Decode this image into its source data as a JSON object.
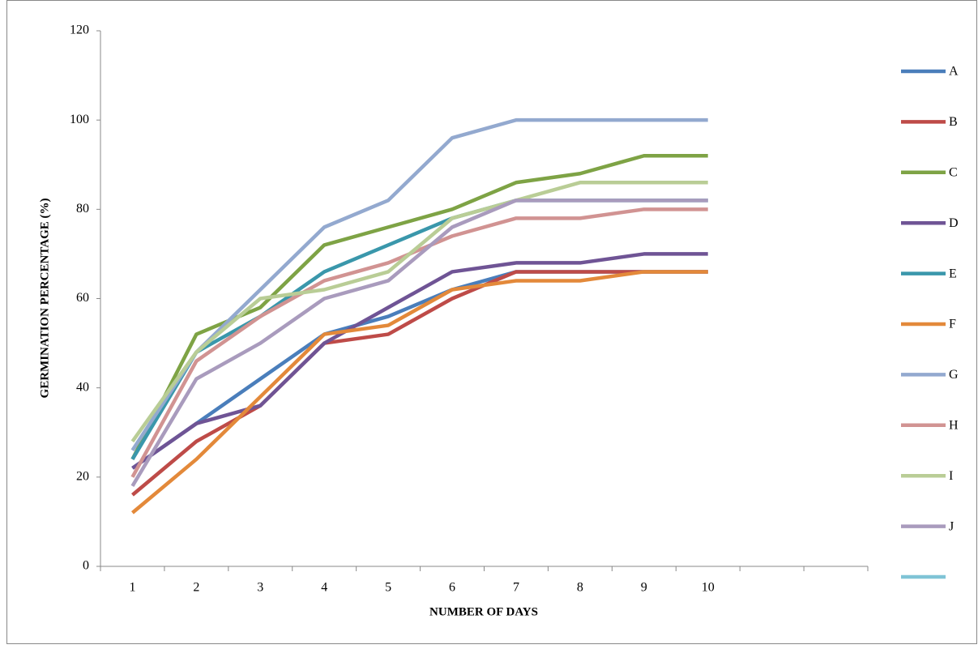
{
  "chart_data": {
    "type": "line",
    "xlabel": "NUMBER OF DAYS",
    "ylabel": "GERMINATION PERCENTAGE (%)",
    "categories": [
      "1",
      "2",
      "3",
      "4",
      "5",
      "6",
      "7",
      "8",
      "9",
      "10",
      null,
      null
    ],
    "ylim": [
      0,
      120
    ],
    "yticks": [
      0,
      20,
      40,
      60,
      80,
      100,
      120
    ],
    "legend": "right",
    "series": [
      {
        "name": "A",
        "color": "#4a7ebb",
        "values": [
          22,
          32,
          42,
          52,
          56,
          62,
          66,
          66,
          66,
          66,
          null,
          null
        ]
      },
      {
        "name": "B",
        "color": "#be4b48",
        "values": [
          16,
          28,
          36,
          50,
          52,
          60,
          66,
          66,
          66,
          66,
          null,
          null
        ]
      },
      {
        "name": "C",
        "color": "#7ea345",
        "values": [
          24,
          52,
          58,
          72,
          76,
          80,
          86,
          88,
          92,
          92,
          null,
          null
        ]
      },
      {
        "name": "D",
        "color": "#6f5495",
        "values": [
          22,
          32,
          36,
          50,
          58,
          66,
          68,
          68,
          70,
          70,
          null,
          null
        ]
      },
      {
        "name": "E",
        "color": "#3a97ab",
        "values": [
          24,
          48,
          56,
          66,
          72,
          78,
          82,
          82,
          82,
          82,
          null,
          null
        ]
      },
      {
        "name": "F",
        "color": "#e3893a",
        "values": [
          12,
          24,
          38,
          52,
          54,
          62,
          64,
          64,
          66,
          66,
          null,
          null
        ]
      },
      {
        "name": "G",
        "color": "#93a9cf",
        "values": [
          26,
          48,
          62,
          76,
          82,
          96,
          100,
          100,
          100,
          100,
          null,
          null
        ]
      },
      {
        "name": "H",
        "color": "#d19392",
        "values": [
          20,
          46,
          56,
          64,
          68,
          74,
          78,
          78,
          80,
          80,
          null,
          null
        ]
      },
      {
        "name": "I",
        "color": "#b9cd96",
        "values": [
          28,
          48,
          60,
          62,
          66,
          78,
          82,
          86,
          86,
          86,
          null,
          null
        ]
      },
      {
        "name": "J",
        "color": "#a99bbd",
        "values": [
          18,
          42,
          50,
          60,
          64,
          76,
          82,
          82,
          82,
          82,
          null,
          null
        ]
      },
      {
        "name": null,
        "color": "#7fc4d6",
        "values": [
          null,
          null,
          null,
          null,
          null,
          null,
          null,
          null,
          null,
          null,
          null,
          null
        ]
      }
    ]
  }
}
